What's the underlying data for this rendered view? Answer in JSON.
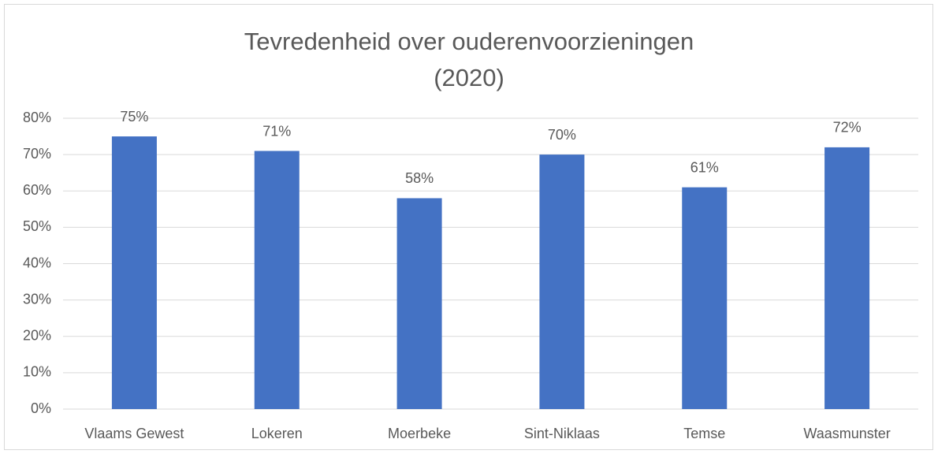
{
  "chart_data": {
    "type": "bar",
    "title": "Tevredenheid over ouderenvoorzieningen (2020)",
    "categories": [
      "Vlaams Gewest",
      "Lokeren",
      "Moerbeke",
      "Sint-Niklaas",
      "Temse",
      "Waasmunster"
    ],
    "values": [
      75,
      71,
      58,
      70,
      61,
      72
    ],
    "value_labels": [
      "75%",
      "71%",
      "58%",
      "70%",
      "61%",
      "72%"
    ],
    "color": "#4472c4",
    "ylim": [
      0,
      80
    ],
    "yticks": [
      {
        "value": 0,
        "label": "0%"
      },
      {
        "value": 10,
        "label": "10%"
      },
      {
        "value": 20,
        "label": "20%"
      },
      {
        "value": 30,
        "label": "30%"
      },
      {
        "value": 40,
        "label": "40%"
      },
      {
        "value": 50,
        "label": "50%"
      },
      {
        "value": 60,
        "label": "60%"
      },
      {
        "value": 70,
        "label": "70%"
      },
      {
        "value": 80,
        "label": "80%"
      }
    ],
    "grid": true
  }
}
